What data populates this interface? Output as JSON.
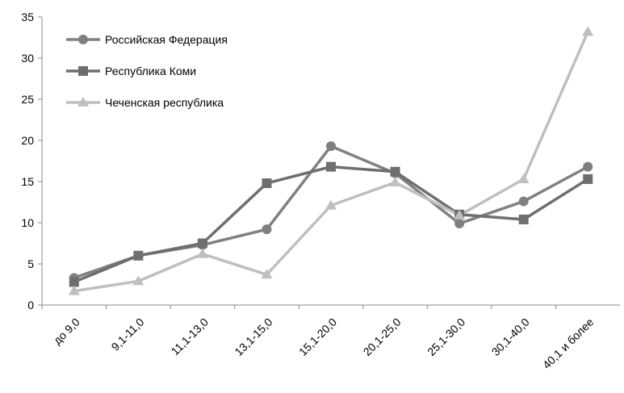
{
  "chart_data": {
    "type": "line",
    "categories": [
      "до 9,0",
      "9,1-11,0",
      "11,1-13,0",
      "13,1-15,0",
      "15,1-20,0",
      "20,1-25,0",
      "25,1-30,0",
      "30,1-40,0",
      "40,1 и более"
    ],
    "series": [
      {
        "name": "Российская Федерация",
        "color": "#808080",
        "marker": "circle",
        "values": [
          3.3,
          6.0,
          7.3,
          9.2,
          19.3,
          16.0,
          9.9,
          12.6,
          16.8
        ]
      },
      {
        "name": "Республика Коми",
        "color": "#6e6e6e",
        "marker": "square",
        "values": [
          2.8,
          6.0,
          7.5,
          14.8,
          16.8,
          16.2,
          11.0,
          10.4,
          15.3
        ]
      },
      {
        "name": "Чеченская республика",
        "color": "#bfbfbf",
        "marker": "triangle",
        "values": [
          1.7,
          2.9,
          6.2,
          3.7,
          12.1,
          14.9,
          10.9,
          15.3,
          33.2
        ]
      }
    ],
    "ylim": [
      0,
      35
    ],
    "yticks": [
      0,
      5,
      10,
      15,
      20,
      25,
      30,
      35
    ],
    "legend": "top-left"
  }
}
